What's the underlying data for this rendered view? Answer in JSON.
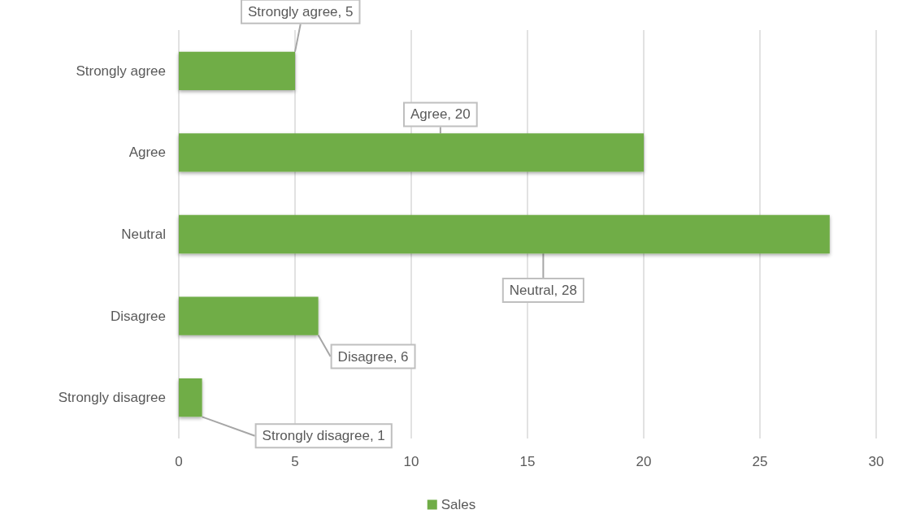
{
  "chart_data": {
    "type": "bar",
    "orientation": "horizontal",
    "categories": [
      "Strongly agree",
      "Agree",
      "Neutral",
      "Disagree",
      "Strongly disagree"
    ],
    "series": [
      {
        "name": "Sales",
        "color": "#70ad47",
        "values": [
          5,
          20,
          28,
          6,
          1
        ],
        "value_labels": [
          "Strongly agree, 5",
          "Agree, 20",
          "Neutral, 28",
          "Disagree, 6",
          "Strongly disagree, 1"
        ]
      }
    ],
    "xlim": [
      0,
      30
    ],
    "xticks": [
      0,
      5,
      10,
      15,
      20,
      25,
      30
    ],
    "grid": "x",
    "legend": "bottom"
  }
}
